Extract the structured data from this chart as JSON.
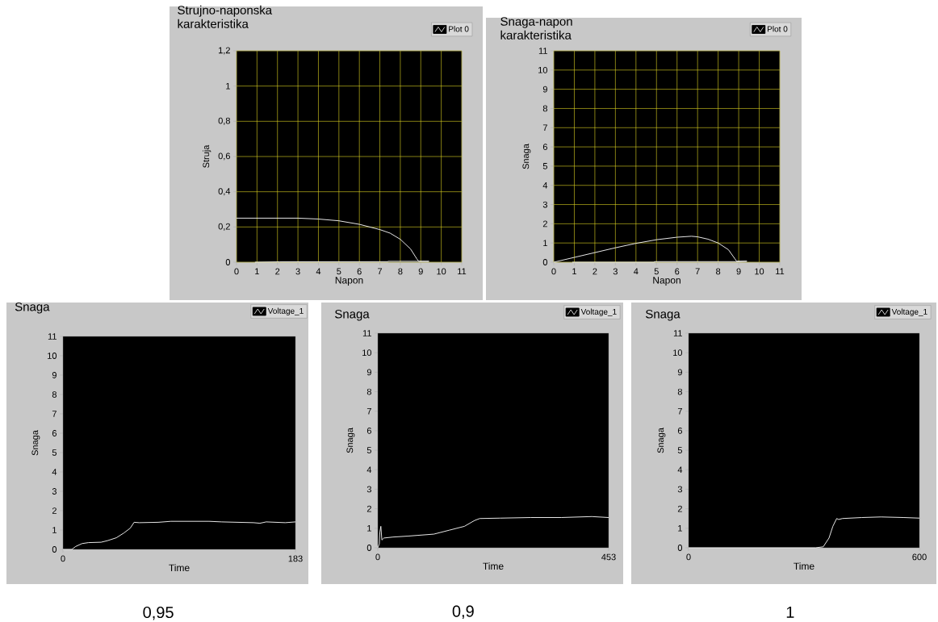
{
  "chart_data": [
    {
      "type": "line",
      "title": "Strujno-naponska karakteristika",
      "xlabel": "Napon",
      "ylabel": "Struja",
      "xlim": [
        0,
        11
      ],
      "ylim": [
        0,
        1.2
      ],
      "xticks": [
        0,
        1,
        2,
        3,
        4,
        5,
        6,
        7,
        8,
        9,
        10,
        11
      ],
      "yticks": [
        0,
        {
          "value": 0.2,
          "label": "0,2"
        },
        {
          "value": 0.4,
          "label": "0,4"
        },
        {
          "value": 0.6,
          "label": "0,6"
        },
        {
          "value": 0.8,
          "label": "0,8"
        },
        1,
        {
          "value": 1.2,
          "label": "1,2"
        }
      ],
      "grid": true,
      "legend": "top right",
      "series": [
        {
          "name": "Plot 0",
          "color": "#ffffff",
          "x": [
            0,
            1,
            2,
            3,
            4,
            5,
            6,
            7,
            7.5,
            8,
            8.5,
            8.8,
            8.9,
            9.4,
            7.4,
            7.4,
            2.1,
            0.9
          ],
          "values": [
            0.25,
            0.25,
            0.25,
            0.25,
            0.245,
            0.235,
            0.215,
            0.185,
            0.165,
            0.13,
            0.075,
            0.02,
            0.005,
            0.005,
            0.005,
            0.003,
            0.002,
            0
          ]
        }
      ]
    },
    {
      "type": "line",
      "title": "Snaga-napon karakteristika",
      "xlabel": "Napon",
      "ylabel": "Snaga",
      "xlim": [
        0,
        11
      ],
      "ylim": [
        0,
        11
      ],
      "xticks": [
        0,
        1,
        2,
        3,
        4,
        5,
        6,
        7,
        8,
        9,
        10,
        11
      ],
      "yticks": [
        0,
        1,
        2,
        3,
        4,
        5,
        6,
        7,
        8,
        9,
        10,
        11
      ],
      "grid": true,
      "legend": "top right",
      "series": [
        {
          "name": "Plot 0",
          "color": "#ffffff",
          "x": [
            0,
            1,
            2,
            3,
            4,
            5,
            6,
            6.7,
            7,
            7.5,
            8,
            8.5,
            8.8,
            8.9,
            9.4,
            9,
            4.9,
            4.9,
            0.9
          ],
          "values": [
            0,
            0.25,
            0.5,
            0.75,
            0.98,
            1.17,
            1.3,
            1.35,
            1.32,
            1.2,
            1,
            0.65,
            0.2,
            0.05,
            0.05,
            0.03,
            0.03,
            0,
            0
          ]
        }
      ]
    },
    {
      "type": "line",
      "title": "Snaga",
      "xlabel": "Time",
      "ylabel": "Snaga",
      "xlim": [
        0,
        183
      ],
      "ylim": [
        0,
        11
      ],
      "xticks": [
        0,
        183
      ],
      "yticks": [
        0,
        1,
        2,
        3,
        4,
        5,
        6,
        7,
        8,
        9,
        10,
        11
      ],
      "legend": "top right",
      "annotations": [
        "0,95"
      ],
      "series": [
        {
          "name": "Voltage_1",
          "color": "#ffffff",
          "x": [
            0,
            7,
            10,
            15,
            20,
            30,
            35,
            42,
            48,
            53,
            56,
            60,
            75,
            85,
            115,
            125,
            150,
            155,
            160,
            175,
            183
          ],
          "values": [
            0,
            0,
            0.15,
            0.3,
            0.35,
            0.37,
            0.45,
            0.6,
            0.85,
            1.1,
            1.4,
            1.38,
            1.4,
            1.45,
            1.45,
            1.42,
            1.38,
            1.35,
            1.42,
            1.38,
            1.42
          ]
        }
      ]
    },
    {
      "type": "line",
      "title": "Snaga",
      "xlabel": "Time",
      "ylabel": "Snaga",
      "xlim": [
        0,
        453
      ],
      "ylim": [
        0,
        11
      ],
      "xticks": [
        0,
        453
      ],
      "yticks": [
        0,
        1,
        2,
        3,
        4,
        5,
        6,
        7,
        8,
        9,
        10,
        11
      ],
      "legend": "top right",
      "annotations": [
        "0,9"
      ],
      "series": [
        {
          "name": "Voltage_1",
          "color": "#ffffff",
          "x": [
            0,
            3,
            4,
            6,
            8,
            12,
            30,
            60,
            110,
            140,
            170,
            190,
            200,
            240,
            300,
            360,
            420,
            453
          ],
          "values": [
            0,
            0.2,
            0.8,
            1.1,
            0.4,
            0.5,
            0.55,
            0.6,
            0.7,
            0.9,
            1.1,
            1.4,
            1.5,
            1.52,
            1.55,
            1.55,
            1.6,
            1.55
          ]
        }
      ]
    },
    {
      "type": "line",
      "title": "Snaga",
      "xlabel": "Time",
      "ylabel": "Snaga",
      "xlim": [
        0,
        600
      ],
      "ylim": [
        0,
        11
      ],
      "xticks": [
        0,
        600
      ],
      "yticks": [
        0,
        1,
        2,
        3,
        4,
        5,
        6,
        7,
        8,
        9,
        10,
        11
      ],
      "legend": "top right",
      "annotations": [
        "1"
      ],
      "series": [
        {
          "name": "Voltage_1",
          "color": "#ffffff",
          "x": [
            0,
            330,
            350,
            365,
            375,
            385,
            390,
            400,
            450,
            500,
            560,
            600
          ],
          "values": [
            0,
            0,
            0.05,
            0.5,
            1.1,
            1.5,
            1.45,
            1.5,
            1.55,
            1.58,
            1.55,
            1.52
          ]
        }
      ]
    }
  ]
}
